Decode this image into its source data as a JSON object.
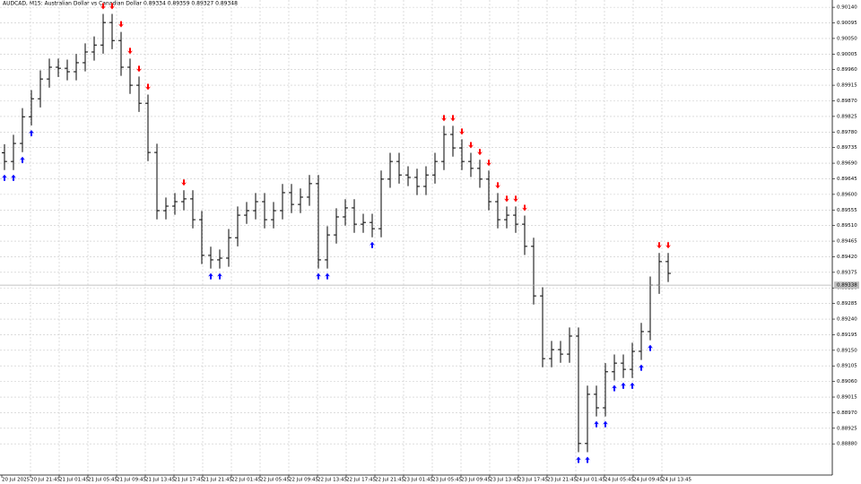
{
  "chart_data": {
    "type": "ohlc",
    "title": "AUDCAD, M15: Australian Dollar vs Canadian Dollar 0.89334 0.89359 0.89327 0.89348",
    "ylim": [
      0.8879,
      0.90161
    ],
    "yticks": [
      {
        "value": 0.9014,
        "label": "0.90140"
      },
      0.90095,
      {
        "value": 0.9005,
        "label": "0.90050"
      },
      0.90005,
      {
        "value": 0.8996,
        "label": "0.89960"
      },
      0.89915,
      {
        "value": 0.8987,
        "label": "0.89870"
      },
      0.89825,
      {
        "value": 0.8978,
        "label": "0.89780"
      },
      0.89735,
      {
        "value": 0.8969,
        "label": "0.89690"
      },
      0.89645,
      {
        "value": 0.896,
        "label": "0.89600"
      },
      0.89555,
      {
        "value": 0.8951,
        "label": "0.89510"
      },
      0.89465,
      {
        "value": 0.8942,
        "label": "0.89420"
      },
      0.89375,
      {
        "value": 0.8933,
        "label": "0.89330"
      },
      0.89285,
      {
        "value": 0.8924,
        "label": "0.89240"
      },
      0.89195,
      {
        "value": 0.8915,
        "label": "0.89150"
      },
      0.89105,
      {
        "value": 0.8906,
        "label": "0.89060"
      },
      0.89015,
      {
        "value": 0.8897,
        "label": "0.88970"
      },
      0.88925,
      {
        "value": 0.8888,
        "label": "0.88880"
      }
    ],
    "grid": true,
    "time_labels": [
      "20 Jul 2025",
      "20 Jul 21:45",
      "21 Jul 01:45",
      "21 Jul 05:45",
      "21 Jul 09:45",
      "21 Jul 13:45",
      "21 Jul 17:45",
      "21 Jul 21:45",
      "22 Jul 01:45",
      "22 Jul 05:45",
      "22 Jul 09:45",
      "22 Jul 13:45",
      "22 Jul 17:45",
      "22 Jul 21:45",
      "23 Jul 01:45",
      "23 Jul 05:45",
      "23 Jul 09:45",
      "23 Jul 13:45",
      "23 Jul 17:45",
      "23 Jul 21:45",
      "24 Jul 01:45",
      "24 Jul 05:45",
      "24 Jul 09:45",
      "24 Jul 13:45"
    ],
    "current_price": 0.89338,
    "open": [
      0.8972,
      0.89695,
      0.89747,
      0.89824,
      0.89876,
      0.89933,
      0.89967,
      0.89964,
      0.89954,
      0.8998,
      0.90011,
      0.90031,
      0.90096,
      0.90044,
      0.89967,
      0.89915,
      0.89863,
      0.89721,
      0.89553,
      0.89566,
      0.89579,
      0.89587,
      0.89527,
      0.89424,
      0.89411,
      0.89416,
      0.89475,
      0.8954,
      0.89553,
      0.89579,
      0.89527,
      0.89553,
      0.89605,
      0.89571,
      0.89592,
      0.89631,
      0.89411,
      0.89483,
      0.89535,
      0.89561,
      0.89514,
      0.89519,
      0.89501,
      0.89644,
      0.89695,
      0.89656,
      0.89649,
      0.89623,
      0.89656,
      0.89695,
      0.89773,
      0.89734,
      0.89695,
      0.89675,
      0.89644,
      0.89579,
      0.89527,
      0.8954,
      0.89514,
      0.8945,
      0.89307,
      0.89126,
      0.89152,
      0.89139,
      0.89191,
      0.88881,
      0.89023,
      0.88984,
      0.89088,
      0.89113,
      0.89095,
      0.89147,
      0.89204,
      0.89338,
      0.89406
    ],
    "high": [
      0.89745,
      0.89772,
      0.89849,
      0.89901,
      0.89958,
      0.89992,
      0.89992,
      0.89989,
      0.90005,
      0.90036,
      0.90056,
      0.90121,
      0.90121,
      0.90069,
      0.89992,
      0.8994,
      0.89888,
      0.89746,
      0.89591,
      0.89604,
      0.89612,
      0.89612,
      0.89552,
      0.89449,
      0.89441,
      0.895,
      0.89565,
      0.89578,
      0.89604,
      0.89604,
      0.89578,
      0.8963,
      0.8963,
      0.89617,
      0.89656,
      0.89656,
      0.89508,
      0.8956,
      0.89586,
      0.89586,
      0.89544,
      0.89544,
      0.89669,
      0.8972,
      0.8972,
      0.89681,
      0.89674,
      0.89681,
      0.8972,
      0.89798,
      0.89798,
      0.89759,
      0.8972,
      0.897,
      0.89669,
      0.89604,
      0.89565,
      0.89565,
      0.89539,
      0.89475,
      0.89332,
      0.89177,
      0.89177,
      0.89216,
      0.89216,
      0.89048,
      0.89048,
      0.89113,
      0.89138,
      0.89138,
      0.89172,
      0.89229,
      0.89363,
      0.89431,
      0.89431
    ],
    "low": [
      0.8967,
      0.8967,
      0.89722,
      0.89799,
      0.89851,
      0.89908,
      0.89939,
      0.89929,
      0.89929,
      0.89955,
      0.89986,
      0.90006,
      0.90019,
      0.89942,
      0.8989,
      0.89838,
      0.89696,
      0.89528,
      0.89528,
      0.89541,
      0.89554,
      0.89502,
      0.89399,
      0.89386,
      0.89386,
      0.89391,
      0.8945,
      0.89515,
      0.89528,
      0.89502,
      0.89502,
      0.89528,
      0.89546,
      0.89546,
      0.89567,
      0.89386,
      0.89386,
      0.89458,
      0.8951,
      0.89489,
      0.89489,
      0.89476,
      0.89476,
      0.89619,
      0.89631,
      0.89624,
      0.89598,
      0.89598,
      0.89631,
      0.8967,
      0.89709,
      0.8967,
      0.8965,
      0.89619,
      0.89554,
      0.89502,
      0.89502,
      0.89489,
      0.89425,
      0.89282,
      0.89101,
      0.89101,
      0.89114,
      0.89114,
      0.88856,
      0.88856,
      0.88959,
      0.88959,
      0.89063,
      0.8907,
      0.8907,
      0.89122,
      0.89179,
      0.89313,
      0.89347
    ],
    "close": [
      0.89695,
      0.89747,
      0.89824,
      0.89876,
      0.89933,
      0.89967,
      0.89964,
      0.89954,
      0.8998,
      0.90011,
      0.90031,
      0.90096,
      0.90044,
      0.89967,
      0.89915,
      0.89863,
      0.89721,
      0.89553,
      0.89566,
      0.89579,
      0.89587,
      0.89527,
      0.89424,
      0.89411,
      0.89416,
      0.89475,
      0.8954,
      0.89553,
      0.89579,
      0.89527,
      0.89553,
      0.89605,
      0.89571,
      0.89592,
      0.89631,
      0.89411,
      0.89483,
      0.89535,
      0.89561,
      0.89514,
      0.89519,
      0.89501,
      0.89644,
      0.89695,
      0.89656,
      0.89649,
      0.89623,
      0.89656,
      0.89695,
      0.89773,
      0.89734,
      0.89695,
      0.89675,
      0.89644,
      0.89579,
      0.89527,
      0.8954,
      0.89514,
      0.8945,
      0.89307,
      0.89126,
      0.89152,
      0.89139,
      0.89191,
      0.88881,
      0.89023,
      0.88984,
      0.89088,
      0.89113,
      0.89095,
      0.89147,
      0.89204,
      0.89338,
      0.89406,
      0.89372
    ],
    "buy_signals": [
      0,
      1,
      2,
      3,
      23,
      24,
      35,
      36,
      41,
      64,
      65,
      66,
      67,
      68,
      69,
      70,
      71,
      72
    ],
    "sell_signals": [
      11,
      12,
      13,
      14,
      15,
      16,
      20,
      49,
      50,
      51,
      52,
      53,
      54,
      55,
      56,
      57,
      58,
      73,
      74
    ],
    "buy_color": "#0000ff",
    "sell_color": "#ff0000",
    "bar_color": "#000000"
  }
}
